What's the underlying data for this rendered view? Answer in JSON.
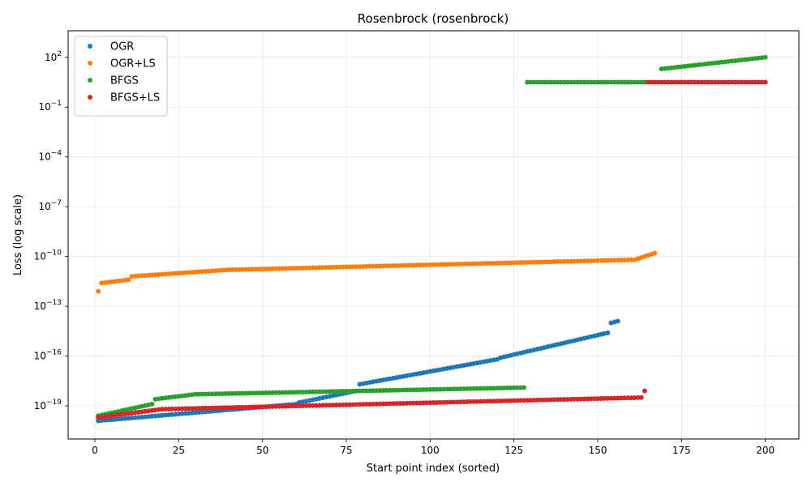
{
  "chart_data": {
    "type": "scatter",
    "title": "Rosenbrock (rosenbrock)",
    "xlabel": "Start point index (sorted)",
    "ylabel": "Loss (log scale)",
    "y_scale": "log",
    "xlim": [
      -8,
      210
    ],
    "ylim_log10": [
      -21,
      3.6
    ],
    "x_ticks": [
      0,
      25,
      50,
      75,
      100,
      125,
      150,
      175,
      200
    ],
    "y_ticks": [
      {
        "exp": 2,
        "label": "10^2"
      },
      {
        "exp": -1,
        "label": "10^-1"
      },
      {
        "exp": -4,
        "label": "10^-4"
      },
      {
        "exp": -7,
        "label": "10^-7"
      },
      {
        "exp": -10,
        "label": "10^-10"
      },
      {
        "exp": -13,
        "label": "10^-13"
      },
      {
        "exp": -16,
        "label": "10^-16"
      },
      {
        "exp": -19,
        "label": "10^-19"
      }
    ],
    "grid": true,
    "legend_position": "top-left",
    "series": [
      {
        "name": "OGR",
        "color": "#1f77b4",
        "segments": [
          {
            "x_start": 1,
            "x_end": 60,
            "log10_start": -19.9,
            "log10_end": -18.9
          },
          {
            "x_start": 61,
            "x_end": 78,
            "log10_start": -18.8,
            "log10_end": -18.1
          },
          {
            "x_start": 79,
            "x_end": 120,
            "log10_start": -17.7,
            "log10_end": -16.2
          },
          {
            "x_start": 121,
            "x_end": 153,
            "log10_start": -16.1,
            "log10_end": -14.6
          },
          {
            "x_start": 154,
            "x_end": 156,
            "log10_start": -14.0,
            "log10_end": -13.9
          }
        ]
      },
      {
        "name": "OGR+LS",
        "color": "#ff7f0e",
        "segments": [
          {
            "x_start": 1,
            "x_end": 1,
            "log10_start": -12.1,
            "log10_end": -12.1
          },
          {
            "x_start": 2,
            "x_end": 10,
            "log10_start": -11.6,
            "log10_end": -11.4
          },
          {
            "x_start": 11,
            "x_end": 40,
            "log10_start": -11.2,
            "log10_end": -10.8
          },
          {
            "x_start": 41,
            "x_end": 160,
            "log10_start": -10.8,
            "log10_end": -10.2
          },
          {
            "x_start": 161,
            "x_end": 167,
            "log10_start": -10.2,
            "log10_end": -9.8
          }
        ]
      },
      {
        "name": "BFGS",
        "color": "#2ca02c",
        "segments": [
          {
            "x_start": 1,
            "x_end": 17,
            "log10_start": -19.6,
            "log10_end": -18.9
          },
          {
            "x_start": 18,
            "x_end": 30,
            "log10_start": -18.6,
            "log10_end": -18.3
          },
          {
            "x_start": 31,
            "x_end": 128,
            "log10_start": -18.3,
            "log10_end": -17.9
          },
          {
            "x_start": 129,
            "x_end": 164,
            "log10_start": 0.5,
            "log10_end": 0.5
          },
          {
            "x_start": 169,
            "x_end": 200,
            "log10_start": 1.3,
            "log10_end": 2.0
          }
        ]
      },
      {
        "name": "BFGS+LS",
        "color": "#d62728",
        "segments": [
          {
            "x_start": 1,
            "x_end": 20,
            "log10_start": -19.7,
            "log10_end": -19.2
          },
          {
            "x_start": 21,
            "x_end": 163,
            "log10_start": -19.2,
            "log10_end": -18.5
          },
          {
            "x_start": 164,
            "x_end": 164,
            "log10_start": -18.1,
            "log10_end": -18.1
          },
          {
            "x_start": 165,
            "x_end": 200,
            "log10_start": 0.5,
            "log10_end": 0.5
          }
        ]
      }
    ]
  }
}
